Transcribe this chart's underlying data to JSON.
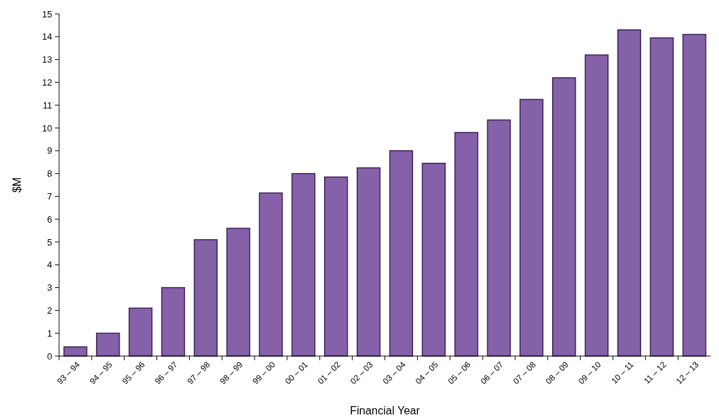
{
  "chart_data": {
    "type": "bar",
    "xlabel": "Financial Year",
    "ylabel": "$M",
    "categories": [
      "93 – 94",
      "94 – 95",
      "95 – 96",
      "96 – 97",
      "97 – 98",
      "98 – 99",
      "99 – 00",
      "00 – 01",
      "01 – 02",
      "02 – 03",
      "03 – 04",
      "04 – 05",
      "05 – 06",
      "06 – 07",
      "07 – 08",
      "08 – 09",
      "09 – 10",
      "10 – 11",
      "11 – 12",
      "12 – 13"
    ],
    "values": [
      0.4,
      1.0,
      2.1,
      3.0,
      5.1,
      5.6,
      7.15,
      8.0,
      7.85,
      8.25,
      9.0,
      8.45,
      9.8,
      10.35,
      11.25,
      12.2,
      13.2,
      14.3,
      13.95,
      14.1
    ],
    "color": "#8561a9",
    "ylim": [
      0,
      15
    ],
    "yticks": [
      0,
      1,
      2,
      3,
      4,
      5,
      6,
      7,
      8,
      9,
      10,
      11,
      12,
      13,
      14,
      15
    ],
    "grid": false
  }
}
